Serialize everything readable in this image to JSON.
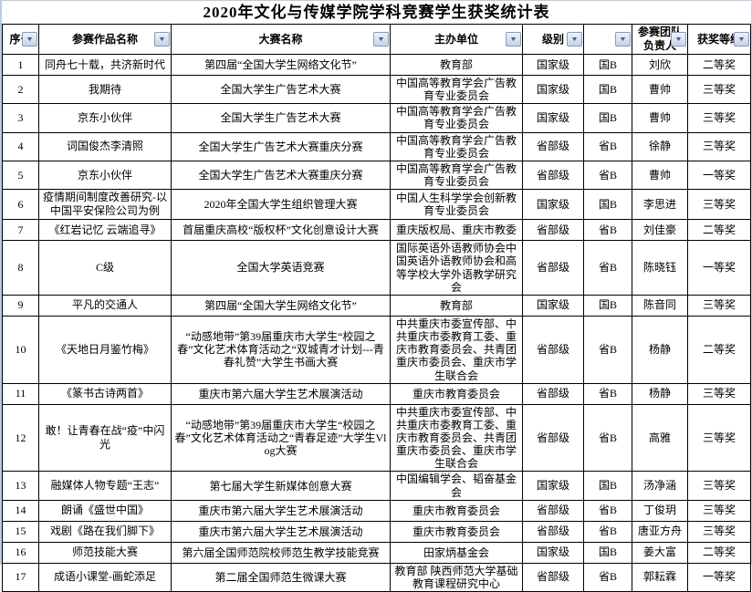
{
  "title": "2020年文化与传媒学院学科竞赛学生获奖统计表",
  "colors": {
    "grid_border": "#000000",
    "sheet_edge": "#b8cce4",
    "filter_button_bg": "#d6e0ef",
    "filter_button_border": "#8a99b5",
    "filter_arrow": "#3f5f93",
    "title_color": "#000000"
  },
  "table": {
    "columns": [
      {
        "key": "no",
        "label": "序号",
        "filter": true
      },
      {
        "key": "work",
        "label": "参赛作品名称",
        "filter": true
      },
      {
        "key": "competition",
        "label": "大赛名称",
        "filter": true
      },
      {
        "key": "organizer",
        "label": "主办单位",
        "filter": true
      },
      {
        "key": "level",
        "label": "级别",
        "filter": true
      },
      {
        "key": "level_code",
        "label": "",
        "filter": true
      },
      {
        "key": "leader",
        "label": "参赛团队负责人",
        "filter": true
      },
      {
        "key": "award",
        "label": "获奖等级",
        "filter": true
      }
    ],
    "rows": [
      {
        "no": "1",
        "work": "同舟七十载，共济新时代",
        "competition": "第四届“全国大学生网络文化节”",
        "organizer": "教育部",
        "level": "国家级",
        "level_code": "国B",
        "leader": "刘欣",
        "award": "二等奖"
      },
      {
        "no": "2",
        "work": "我期待",
        "competition": "全国大学生广告艺术大赛",
        "organizer": "中国高等教育学会广告教育专业委员会",
        "level": "国家级",
        "level_code": "国B",
        "leader": "曹帅",
        "award": "三等奖"
      },
      {
        "no": "3",
        "work": "京东小伙伴",
        "competition": "全国大学生广告艺术大赛",
        "organizer": "中国高等教育学会广告教育专业委员会",
        "level": "国家级",
        "level_code": "国B",
        "leader": "曹帅",
        "award": "三等奖"
      },
      {
        "no": "4",
        "work": "词国俊杰李清照",
        "competition": "全国大学生广告艺术大赛重庆分赛",
        "organizer": "中国高等教育学会广告教育专业委员会",
        "level": "省部级",
        "level_code": "省B",
        "leader": "徐静",
        "award": "三等奖"
      },
      {
        "no": "5",
        "work": "京东小伙伴",
        "competition": "全国大学生广告艺术大赛重庆分赛",
        "organizer": "中国高等教育学会广告教育专业委员会",
        "level": "省部级",
        "level_code": "省B",
        "leader": "曹帅",
        "award": "一等奖"
      },
      {
        "no": "6",
        "work": "疫情期间制度改善研究-以中国平安保险公司为例",
        "competition": "2020年全国大学生组织管理大赛",
        "organizer": "中国人生科学学会创新教育专业委员会",
        "level": "国家级",
        "level_code": "国B",
        "leader": "李思进",
        "award": "三等奖"
      },
      {
        "no": "7",
        "work": "《红岩记忆 云端追寻》",
        "competition": "首届重庆高校“版权杯”文化创意设计大赛",
        "organizer": "重庆版权局、重庆市教委",
        "level": "省部级",
        "level_code": "省B",
        "leader": "刘佳豪",
        "award": "二等奖"
      },
      {
        "no": "8",
        "work": "C级",
        "competition": "全国大学英语竞赛",
        "organizer": "国际英语外语教师协会中国英语外语教师协会和高等学校大学外语教学研究会",
        "level": "省部级",
        "level_code": "省B",
        "leader": "陈晓钰",
        "award": "一等奖"
      },
      {
        "no": "9",
        "work": "平凡的交通人",
        "competition": "第四届“全国大学生网络文化节”",
        "organizer": "教育部",
        "level": "国家级",
        "level_code": "国B",
        "leader": "陈音同",
        "award": "三等奖"
      },
      {
        "no": "10",
        "work": "《天地日月鉴竹梅》",
        "competition": "“动感地带”第39届重庆市大学生“校园之春”文化艺术体育活动之“双城青才计划---青春礼赞”大学生书画大赛",
        "organizer": "中共重庆市委宣传部、中共重庆市委教育工委、重庆市教育委员会、共青团重庆市委员会、重庆市学生联合会",
        "level": "省部级",
        "level_code": "省B",
        "leader": "杨静",
        "award": "二等奖"
      },
      {
        "no": "11",
        "work": "《篆书古诗两首》",
        "competition": "重庆市第六届大学生艺术展演活动",
        "organizer": "重庆市教育委员会",
        "level": "省部级",
        "level_code": "省B",
        "leader": "杨静",
        "award": "三等奖"
      },
      {
        "no": "12",
        "work": "敢！让青春在战“疫”中闪光",
        "competition": "“动感地带”第39届重庆市大学生“校园之春”文化艺术体育活动之“青春足迹”大学生Vlog大赛",
        "organizer": "中共重庆市委宣传部、中共重庆市委教育工委、重庆市教育委员会、共青团重庆市委员会、重庆市学生联合会",
        "level": "省部级",
        "level_code": "省B",
        "leader": "高雅",
        "award": "三等奖"
      },
      {
        "no": "13",
        "work": "融媒体人物专题“王志”",
        "competition": "第七届大学生新媒体创意大赛",
        "organizer": "中国编辑学会、韬奋基金会",
        "level": "国家级",
        "level_code": "国B",
        "leader": "汤净涵",
        "award": "三等奖"
      },
      {
        "no": "14",
        "work": "朗诵《盛世中国》",
        "competition": "重庆市第六届大学生艺术展演活动",
        "organizer": "重庆市教育委员会",
        "level": "省部级",
        "level_code": "省B",
        "leader": "丁俊玥",
        "award": "三等奖"
      },
      {
        "no": "15",
        "work": "戏剧《路在我们脚下》",
        "competition": "重庆市第六届大学生艺术展演活动",
        "organizer": "重庆市教育委员会",
        "level": "省部级",
        "level_code": "省B",
        "leader": "唐亚方舟",
        "award": "三等奖"
      },
      {
        "no": "16",
        "work": "师范技能大赛",
        "competition": "第六届全国师范院校师范生教学技能竞赛",
        "organizer": "田家炳基金会",
        "level": "国家级",
        "level_code": "国B",
        "leader": "姜大富",
        "award": "二等奖"
      },
      {
        "no": "17",
        "work": "成语小课堂-画蛇添足",
        "competition": "第二届全国师范生微课大赛",
        "organizer": "教育部 陕西师范大学基础教育课程研究中心",
        "level": "省部级",
        "level_code": "省B",
        "leader": "郭耘霖",
        "award": "一等奖"
      }
    ]
  }
}
